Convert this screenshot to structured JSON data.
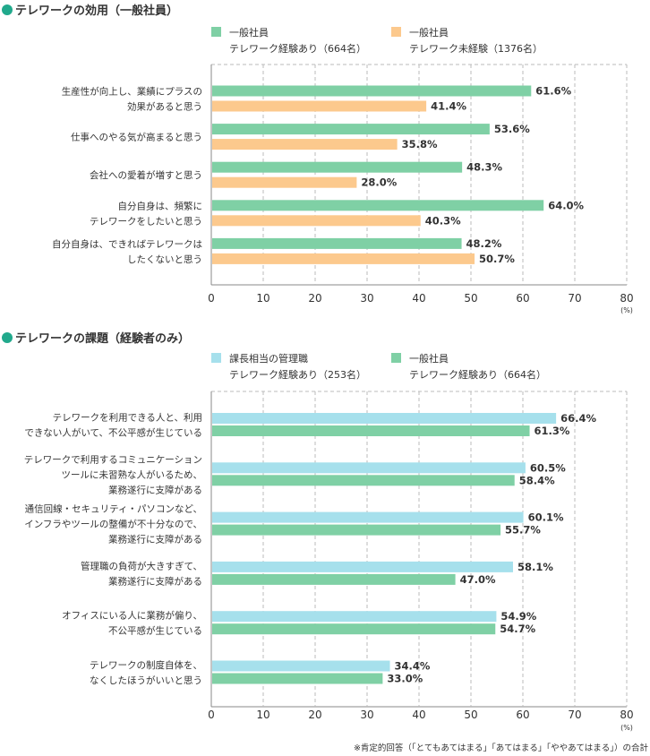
{
  "colors": {
    "green": "#7fd0a5",
    "orange": "#fcc98d",
    "lightblue": "#a6e0ec",
    "bullet": "#21a98c",
    "gridline": "#bbbbbb",
    "axis": "#888888",
    "text": "#333333"
  },
  "unit_label": "(%)",
  "footnote": "※肯定的回答（「とてもあてはまる」「あてはまる」「ややあてはまる」）の合計",
  "chart_data": [
    {
      "type": "bar",
      "orientation": "horizontal",
      "title": "テレワークの効用（一般社員）",
      "xlim": [
        0,
        80
      ],
      "xticks": [
        0,
        10,
        20,
        30,
        40,
        50,
        60,
        70,
        80
      ],
      "grid": true,
      "legend_position": "top",
      "categories": [
        [
          "生産性が向上し、業績にプラスの",
          "効果があると思う"
        ],
        [
          "仕事へのやる気が高まると思う"
        ],
        [
          "会社への愛着が増すと思う"
        ],
        [
          "自分自身は、頻繁に",
          "テレワークをしたいと思う"
        ],
        [
          "自分自身は、できればテレワークは",
          "したくないと思う"
        ]
      ],
      "series": [
        {
          "name": [
            "一般社員",
            "テレワーク経験あり（664名）"
          ],
          "color": "#7fd0a5",
          "values": [
            61.6,
            53.6,
            48.3,
            64.0,
            48.2
          ]
        },
        {
          "name": [
            "一般社員",
            "テレワーク未経験（1376名）"
          ],
          "color": "#fcc98d",
          "values": [
            41.4,
            35.8,
            28.0,
            40.3,
            50.7
          ]
        }
      ]
    },
    {
      "type": "bar",
      "orientation": "horizontal",
      "title": "テレワークの課題（経験者のみ）",
      "xlim": [
        0,
        80
      ],
      "xticks": [
        0,
        10,
        20,
        30,
        40,
        50,
        60,
        70,
        80
      ],
      "grid": true,
      "legend_position": "top",
      "categories": [
        [
          "テレワークを利用できる人と、利用",
          "できない人がいて、不公平感が生じている"
        ],
        [
          "テレワークで利用するコミュニケーション",
          "ツールに未習熟な人がいるため、",
          "業務遂行に支障がある"
        ],
        [
          "通信回線・セキュリティ・パソコンなど、",
          "インフラやツールの整備が不十分なので、",
          "業務遂行に支障がある"
        ],
        [
          "管理職の負荷が大きすぎて、",
          "業務遂行に支障がある"
        ],
        [
          "オフィスにいる人に業務が偏り、",
          "不公平感が生じている"
        ],
        [
          "テレワークの制度自体を、",
          "なくしたほうがいいと思う"
        ]
      ],
      "series": [
        {
          "name": [
            "課長相当の管理職",
            "テレワーク経験あり（253名）"
          ],
          "color": "#a6e0ec",
          "values": [
            66.4,
            60.5,
            60.1,
            58.1,
            54.9,
            34.4
          ]
        },
        {
          "name": [
            "一般社員",
            "テレワーク経験あり（664名）"
          ],
          "color": "#7fd0a5",
          "values": [
            61.3,
            58.4,
            55.7,
            47.0,
            54.7,
            33.0
          ]
        }
      ]
    }
  ]
}
